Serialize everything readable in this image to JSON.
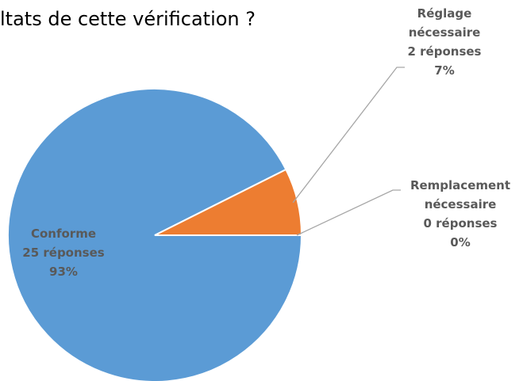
{
  "chart_data": {
    "type": "pie",
    "title": "ltats de cette vérification ?",
    "categories": [
      "Conforme",
      "Réglage nécessaire",
      "Remplacement nécessaire"
    ],
    "values": [
      25,
      2,
      0
    ],
    "value_labels": [
      "25 réponses",
      "2 réponses",
      "0 réponses"
    ],
    "percent_labels": [
      "93%",
      "7%",
      "0%"
    ],
    "colors": [
      "#5b9bd5",
      "#ed7d31",
      "#a5a5a5"
    ],
    "start_angle": 90
  }
}
